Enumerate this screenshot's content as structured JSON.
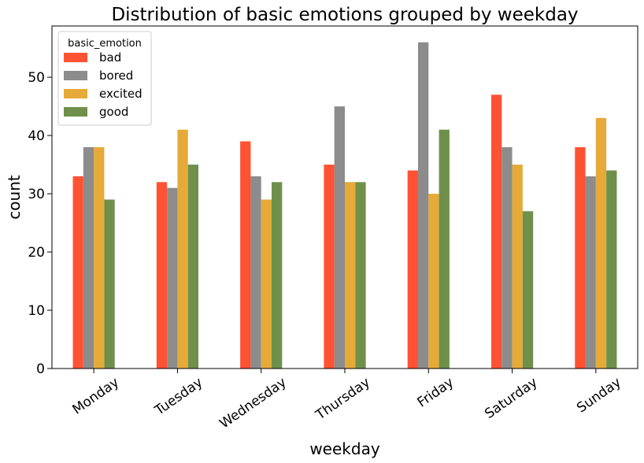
{
  "chart_data": {
    "type": "bar",
    "title": "Distribution of basic emotions grouped by weekday",
    "xlabel": "weekday",
    "ylabel": "count",
    "categories": [
      "Monday",
      "Tuesday",
      "Wednesday",
      "Thursday",
      "Friday",
      "Saturday",
      "Sunday"
    ],
    "series": [
      {
        "name": "bad",
        "color": "#ff5233",
        "values": [
          33,
          32,
          39,
          35,
          34,
          47,
          38
        ]
      },
      {
        "name": "bored",
        "color": "#8c8c8c",
        "values": [
          38,
          31,
          33,
          45,
          56,
          38,
          33
        ]
      },
      {
        "name": "excited",
        "color": "#e6aa38",
        "values": [
          38,
          41,
          29,
          32,
          30,
          35,
          43
        ]
      },
      {
        "name": "good",
        "color": "#6e904b",
        "values": [
          29,
          35,
          32,
          32,
          41,
          27,
          34
        ]
      }
    ],
    "ylim": [
      0,
      58.8
    ],
    "yticks": [
      0,
      10,
      20,
      30,
      40,
      50
    ],
    "grid": false,
    "legend": {
      "title": "basic_emotion",
      "placement": "top-left"
    },
    "xtick_rotation": -35
  }
}
